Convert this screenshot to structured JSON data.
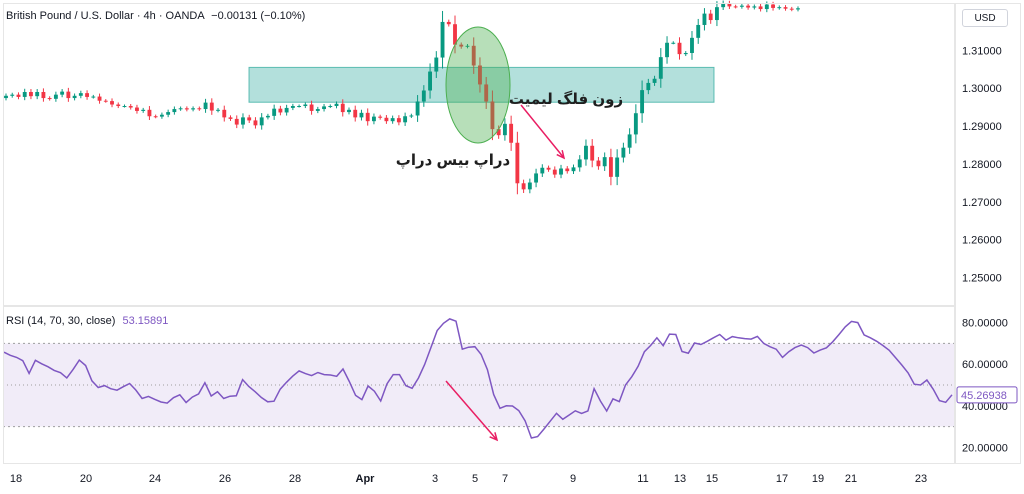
{
  "header": {
    "symbol_title": "British Pound / U.S. Dollar · 4h · OANDA",
    "change_text": "−0.00131 (−0.10%)",
    "currency": "USD"
  },
  "rsi_header": {
    "title": "RSI (14, 70, 30, close)",
    "value_text": "53.15891"
  },
  "annotations": {
    "zone_label": "زون فلگ لیمیت",
    "pattern_label": "دراپ بیس دراپ"
  },
  "colors": {
    "up": "#089981",
    "down": "#f23645",
    "zone_fill": "#26a69a",
    "ellipse_fill": "#4caf50",
    "arrow": "#e91e63",
    "rsi_line": "#7e57c2",
    "rsi_band": "#ede7f6"
  },
  "chart_data": [
    {
      "type": "candlestick",
      "title": "British Pound / U.S. Dollar · 4h · OANDA",
      "x_tick_labels": [
        "18",
        "20",
        "24",
        "26",
        "28",
        "Apr",
        "3",
        "5",
        "7",
        "9",
        "11",
        "13",
        "15",
        "17",
        "19",
        "21",
        "23"
      ],
      "y_tick_labels": [
        "1.31000",
        "1.30000",
        "1.29000",
        "1.28000",
        "1.27000",
        "1.26000",
        "1.25000"
      ],
      "ylim": [
        1.2425,
        1.3225
      ],
      "grid": false,
      "close": [
        1.298,
        1.2983,
        1.2977,
        1.299,
        1.2979,
        1.299,
        1.2974,
        1.2972,
        1.2983,
        1.2991,
        1.2974,
        1.298,
        1.2987,
        1.2977,
        1.2978,
        1.2967,
        1.2966,
        1.2957,
        1.2953,
        1.2953,
        1.2949,
        1.294,
        1.2943,
        1.2926,
        1.2925,
        1.293,
        1.2937,
        1.2945,
        1.2947,
        1.2944,
        1.2947,
        1.2945,
        1.2962,
        1.2941,
        1.2943,
        1.2923,
        1.2919,
        1.2904,
        1.2923,
        1.2915,
        1.2902,
        1.2923,
        1.2927,
        1.2946,
        1.2936,
        1.2948,
        1.2953,
        1.2953,
        1.2957,
        1.294,
        1.2945,
        1.2952,
        1.2953,
        1.2959,
        1.2937,
        1.2943,
        1.2923,
        1.2935,
        1.2913,
        1.2925,
        1.2922,
        1.2913,
        1.2921,
        1.291,
        1.2926,
        1.2928,
        1.2965,
        1.2994,
        1.3044,
        1.3081,
        1.3175,
        1.3169,
        1.3115,
        1.311,
        1.3112,
        1.306,
        1.301,
        1.2965,
        1.2892,
        1.2876,
        1.2906,
        1.2856,
        1.2749,
        1.2733,
        1.2751,
        1.2775,
        1.279,
        1.2785,
        1.2772,
        1.2788,
        1.2781,
        1.2791,
        1.2812,
        1.2848,
        1.2809,
        1.2794,
        1.2818,
        1.2766,
        1.2817,
        1.2843,
        1.2878,
        1.2934,
        1.2995,
        1.3014,
        1.3025,
        1.3082,
        1.312,
        1.312,
        1.309,
        1.3093,
        1.3133,
        1.3167,
        1.3197,
        1.318,
        1.3214,
        1.3224,
        1.3216,
        1.3215,
        1.3218,
        1.3213,
        1.3216,
        1.3209,
        1.3221,
        1.3212,
        1.3214,
        1.321,
        1.3208,
        1.3211
      ]
    },
    {
      "type": "line",
      "title": "RSI (14, 70, 30, close)",
      "series": [
        {
          "name": "RSI",
          "values": [
            65.8,
            64.3,
            63.3,
            61.7,
            55.6,
            61.9,
            60.2,
            58.8,
            57.0,
            55.9,
            53.4,
            57.5,
            62.0,
            59.4,
            52.0,
            48.8,
            49.7,
            48.2,
            47.5,
            49.2,
            50.7,
            47.6,
            43.5,
            44.5,
            43.1,
            41.8,
            41.3,
            43.9,
            45.3,
            41.6,
            44.2,
            45.7,
            51.1,
            44.7,
            46.8,
            43.5,
            44.6,
            44.8,
            52.6,
            49.3,
            46.8,
            44.0,
            41.9,
            42.2,
            48.0,
            51.3,
            54.3,
            56.8,
            55.5,
            54.5,
            56.0,
            55.0,
            54.8,
            54.2,
            57.7,
            51.7,
            45.0,
            43.0,
            49.5,
            47.0,
            42.3,
            50.6,
            55.0,
            55.0,
            49.7,
            48.4,
            53.3,
            59.8,
            68.0,
            76.2,
            79.7,
            81.8,
            80.7,
            67.2,
            68.2,
            68.4,
            64.7,
            57.4,
            45.4,
            38.8,
            40.0,
            39.9,
            37.7,
            32.8,
            24.5,
            25.2,
            28.8,
            32.6,
            36.4,
            33.5,
            35.5,
            37.6,
            36.3,
            37.5,
            48.2,
            42.3,
            37.5,
            43.3,
            42.0,
            50.0,
            54.0,
            59.0,
            66.0,
            69.0,
            72.7,
            68.9,
            74.5,
            74.3,
            66.1,
            65.3,
            70.2,
            69.5,
            71.0,
            72.7,
            74.3,
            71.6,
            73.3,
            72.7,
            72.3,
            72.1,
            73.4,
            70.0,
            68.4,
            67.2,
            63.3,
            66.0,
            68.0,
            69.2,
            68.0,
            65.4,
            66.8,
            67.9,
            70.8,
            74.3,
            78.0,
            80.6,
            80.0,
            74.1,
            72.7,
            71.0,
            69.0,
            66.7,
            63.2,
            59.6,
            55.8,
            50.4,
            50.0,
            52.4,
            48.0,
            42.5,
            41.7,
            45.3
          ]
        }
      ],
      "x_tick_labels": [
        "18",
        "20",
        "24",
        "26",
        "28",
        "Apr",
        "3",
        "5",
        "7",
        "9",
        "11",
        "13",
        "15",
        "17",
        "19",
        "21",
        "23"
      ],
      "y_tick_labels": [
        "80.00000",
        "60.00000",
        "40.00000",
        "20.00000"
      ],
      "levels": [
        70,
        50,
        30
      ],
      "last_value_label": "45.26938",
      "ylim": [
        12,
        88
      ]
    }
  ]
}
